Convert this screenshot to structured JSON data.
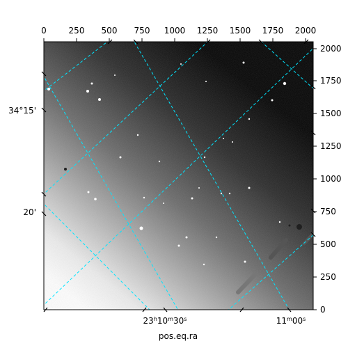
{
  "axes": {
    "xlabel": "pos.eq.ra",
    "pixel_x_ticks": [
      "0",
      "250",
      "500",
      "750",
      "1000",
      "1250",
      "1500",
      "1750",
      "2000"
    ],
    "pixel_y_ticks": [
      "0",
      "250",
      "500",
      "750",
      "1000",
      "1250",
      "1500",
      "1750",
      "2000"
    ],
    "ra_ticks": [
      {
        "h": "23",
        "m": "10",
        "s": "30"
      },
      {
        "h": "",
        "m": "11",
        "s": "00"
      }
    ],
    "dec_ticks": [
      "34°15'",
      "20'"
    ]
  },
  "image": {
    "description_colormap": "grayscale",
    "grid_color": "#00e5ff"
  }
}
